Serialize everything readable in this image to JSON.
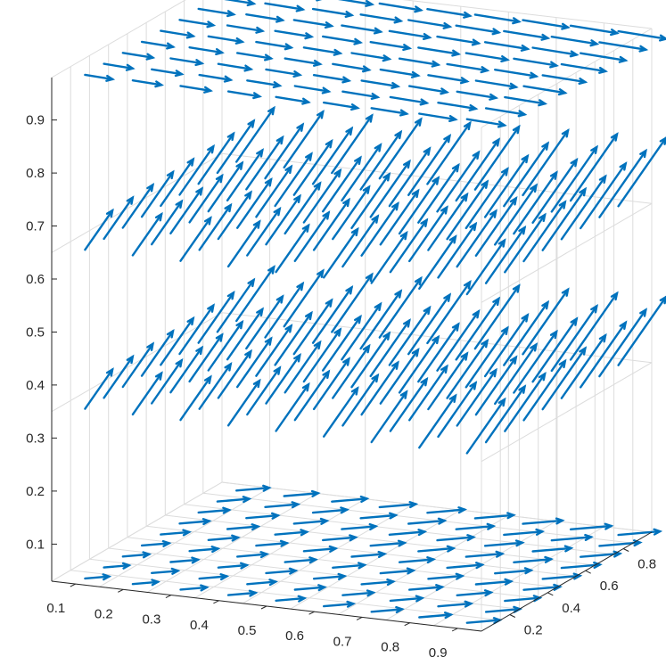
{
  "chart_data": {
    "type": "quiver3",
    "title": "",
    "xlabel": "",
    "ylabel": "",
    "zlabel": "",
    "color": "#0072bd",
    "grid": true,
    "view": "3d",
    "xlim": [
      0.05,
      0.95
    ],
    "ylim": [
      0.05,
      0.95
    ],
    "zlim": [
      0.03,
      0.98
    ],
    "x_ticks": [
      "0.1",
      "0.2",
      "0.3",
      "0.4",
      "0.5",
      "0.6",
      "0.7",
      "0.8",
      "0.9"
    ],
    "y_ticks": [
      "0.2",
      "0.4",
      "0.6",
      "0.8"
    ],
    "z_ticks": [
      "0.1",
      "0.2",
      "0.3",
      "0.4",
      "0.5",
      "0.6",
      "0.7",
      "0.8",
      "0.9"
    ],
    "grid_x": [
      0.05,
      0.15,
      0.25,
      0.35,
      0.45,
      0.55,
      0.65,
      0.75,
      0.85,
      0.95
    ],
    "grid_y": [
      0.05,
      0.15,
      0.25,
      0.35,
      0.45,
      0.55,
      0.65,
      0.75,
      0.85,
      0.95
    ],
    "grid_z": [
      0.03,
      0.35,
      0.65,
      0.98
    ]
  }
}
